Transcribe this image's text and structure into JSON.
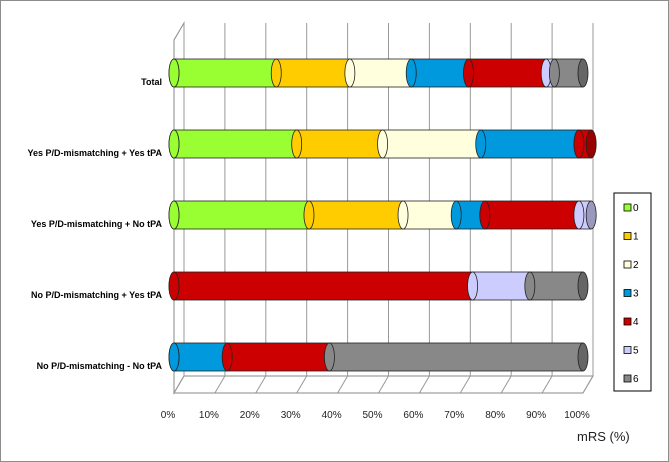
{
  "chart_data": {
    "type": "bar",
    "orientation": "horizontal",
    "stacked": true,
    "style": "3d-cylinder",
    "categories": [
      "Total",
      "Yes P/D-mismatching + Yes tPA",
      "Yes P/D-mismatching + No tPA",
      "No P/D-mismatching + Yes tPA",
      "No P/D-mismatching - No tPA"
    ],
    "series": [
      {
        "name": "0",
        "color": "#99ff33",
        "values": [
          25,
          30,
          33,
          0,
          0
        ]
      },
      {
        "name": "1",
        "color": "#ffcc00",
        "values": [
          18,
          21,
          23,
          0,
          0
        ]
      },
      {
        "name": "2",
        "color": "#ffffdd",
        "values": [
          15,
          24,
          13,
          0,
          0
        ]
      },
      {
        "name": "3",
        "color": "#0099dd",
        "values": [
          14,
          24,
          7,
          0,
          13
        ]
      },
      {
        "name": "4",
        "color": "#cc0000",
        "values": [
          19,
          3,
          23,
          73,
          25
        ]
      },
      {
        "name": "5",
        "color": "#ccccff",
        "values": [
          2,
          0,
          3,
          14,
          0
        ]
      },
      {
        "name": "6",
        "color": "#888888",
        "values": [
          7,
          0,
          0,
          13,
          62
        ]
      }
    ],
    "x_ticks": [
      "0%",
      "10%",
      "20%",
      "30%",
      "40%",
      "50%",
      "60%",
      "70%",
      "80%",
      "90%",
      "100%"
    ],
    "xlim": [
      0,
      100
    ],
    "xlabel": "mRS (%)",
    "ylabel": "",
    "title": "",
    "grid": true,
    "legend_position": "right"
  }
}
